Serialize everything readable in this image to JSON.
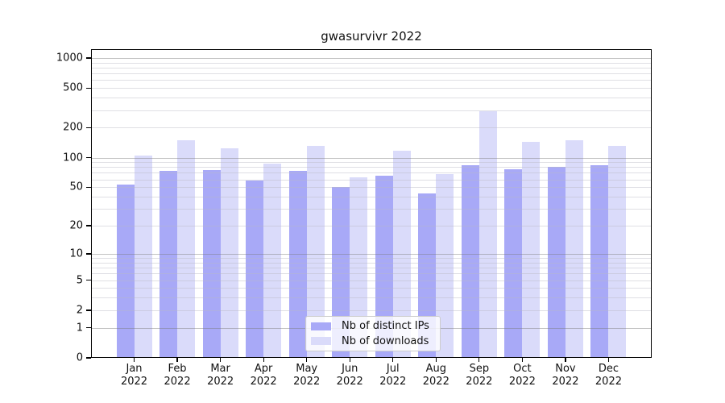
{
  "chart_data": {
    "type": "bar",
    "title": "gwasurvivr 2022",
    "categories": [
      "Jan",
      "Feb",
      "Mar",
      "Apr",
      "May",
      "Jun",
      "Jul",
      "Aug",
      "Sep",
      "Oct",
      "Nov",
      "Dec"
    ],
    "year": "2022",
    "series": [
      {
        "name": "Nb of distinct IPs",
        "color": "#a8a9f7",
        "values": [
          53,
          74,
          75,
          58,
          74,
          50,
          66,
          43,
          84,
          76,
          80,
          84
        ]
      },
      {
        "name": "Nb of downloads",
        "color": "#dadbfa",
        "values": [
          105,
          150,
          123,
          87,
          130,
          63,
          117,
          68,
          295,
          145,
          150,
          132
        ]
      }
    ],
    "yscale": "symlog-log1p",
    "y_ticks": [
      0,
      1,
      2,
      5,
      10,
      20,
      50,
      100,
      200,
      500,
      1000
    ],
    "ylim": [
      0,
      1225
    ],
    "grid": {
      "horizontal": true,
      "major_ticks": [
        1,
        10,
        100,
        1000
      ],
      "major_color": "rgba(120,120,120,0.45)",
      "minor_color": "rgba(185,185,195,0.45)"
    },
    "legend_position": "inside-bottom-center"
  }
}
